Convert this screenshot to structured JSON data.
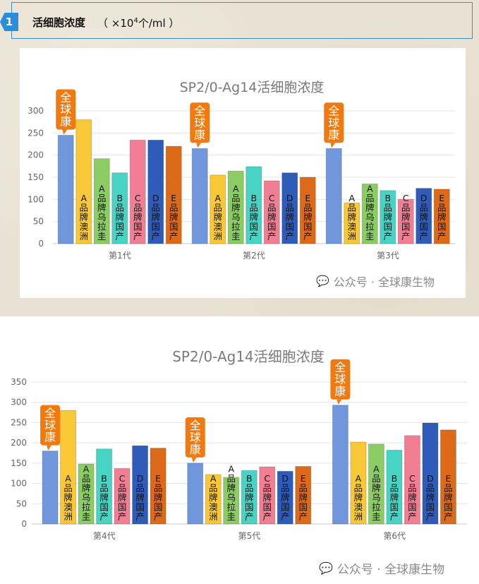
{
  "header": {
    "index": "1",
    "title": "活细胞浓度",
    "unit_prefix": "（ ×10",
    "unit_exp": "4",
    "unit_suffix": "个/ml ）"
  },
  "watermark": "公众号 · 全球康生物",
  "callout_label": "全球康",
  "colors": [
    "#7096dc",
    "#f8c838",
    "#8ccc64",
    "#48d4c4",
    "#f27e94",
    "#2f5cb8",
    "#dc6a18"
  ],
  "callout_color": "#f07a10",
  "chart_data": [
    {
      "type": "bar",
      "title": "SP2/0-Ag14活细胞浓度",
      "ylim": [
        0,
        300
      ],
      "yticks": [
        0,
        50,
        100,
        150,
        200,
        250,
        300
      ],
      "grid": true,
      "categories": [
        "第1代",
        "第2代",
        "第3代"
      ],
      "series": [
        {
          "name": "全球康",
          "values": [
            245,
            215,
            215
          ]
        },
        {
          "name": "A品牌澳洲",
          "values": [
            280,
            155,
            92
          ]
        },
        {
          "name": "A品牌乌拉圭",
          "values": [
            192,
            164,
            135
          ]
        },
        {
          "name": "B品牌国产",
          "values": [
            160,
            174,
            120
          ]
        },
        {
          "name": "C品牌国产",
          "values": [
            234,
            142,
            100
          ]
        },
        {
          "name": "D品牌国产",
          "values": [
            234,
            160,
            125
          ]
        },
        {
          "name": "E品牌国产",
          "values": [
            220,
            150,
            123
          ]
        }
      ]
    },
    {
      "type": "bar",
      "title": "SP2/0-Ag14活细胞浓度",
      "ylim": [
        0,
        350
      ],
      "yticks": [
        0,
        50,
        100,
        150,
        200,
        250,
        300,
        350
      ],
      "grid": true,
      "categories": [
        "第4代",
        "第5代",
        "第6代"
      ],
      "series": [
        {
          "name": "全球康",
          "values": [
            180,
            150,
            293
          ]
        },
        {
          "name": "A品牌澳洲",
          "values": [
            280,
            122,
            202
          ]
        },
        {
          "name": "A品牌乌拉圭",
          "values": [
            148,
            115,
            197
          ]
        },
        {
          "name": "B品牌国产",
          "values": [
            185,
            132,
            182
          ]
        },
        {
          "name": "C品牌国产",
          "values": [
            137,
            141,
            218
          ]
        },
        {
          "name": "D品牌国产",
          "values": [
            193,
            130,
            249
          ]
        },
        {
          "name": "E品牌国产",
          "values": [
            187,
            142,
            232
          ]
        }
      ]
    }
  ]
}
